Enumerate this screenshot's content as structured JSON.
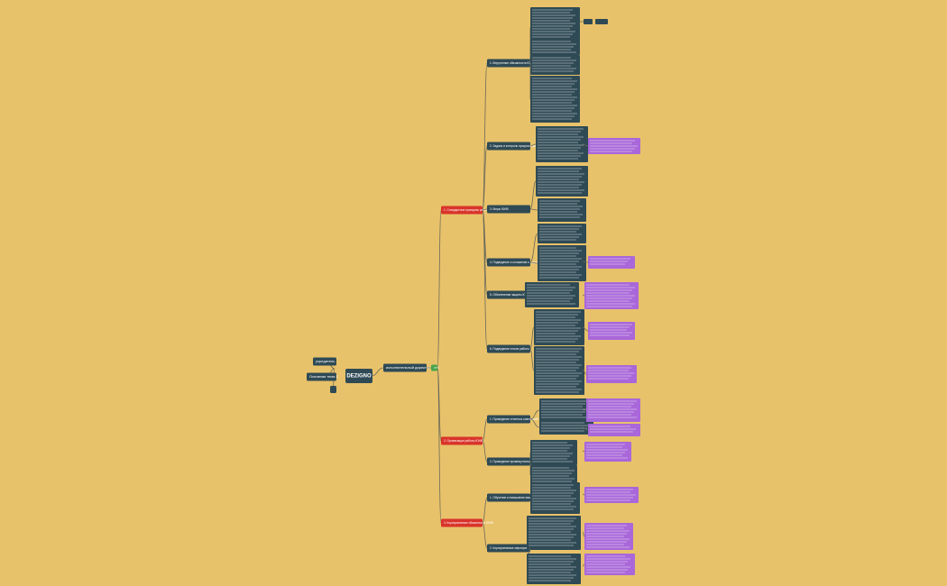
{
  "center": {
    "label": "DEZIGNO"
  },
  "left": [
    {
      "label": "учредитель"
    },
    {
      "label": "Основная тема 2"
    }
  ],
  "director": {
    "label": "исполнительный директор"
  },
  "hub": {
    "label": "ЧТО"
  },
  "branches": [
    {
      "label": "1. Стандартные принципы работы в компании ЮНВ",
      "children": [
        {
          "label": "1. Внутренние обязанности ЮНВ"
        },
        {
          "label": "2. Задачи и контроль процесса работы в офисе"
        },
        {
          "label": "3. Меры ЮНВ"
        },
        {
          "label": "4. Подведение и оглашение о задачах"
        },
        {
          "label": "5. Обеспечение защиты ЮНВ"
        },
        {
          "label": "6. Подведение итогов работы"
        }
      ]
    },
    {
      "label": "2. Организация работы ЮНВ",
      "children": [
        {
          "label": "1. Проведение отчетных совещаний"
        },
        {
          "label": "2. Проведение промежуточных совещаний"
        }
      ]
    },
    {
      "label": "3. Корпоративные обязанности ЮНВ",
      "children": [
        {
          "label": "1. Обучение и повышение квалификации"
        },
        {
          "label": "2. Корпоративные мероприятия"
        }
      ]
    }
  ]
}
